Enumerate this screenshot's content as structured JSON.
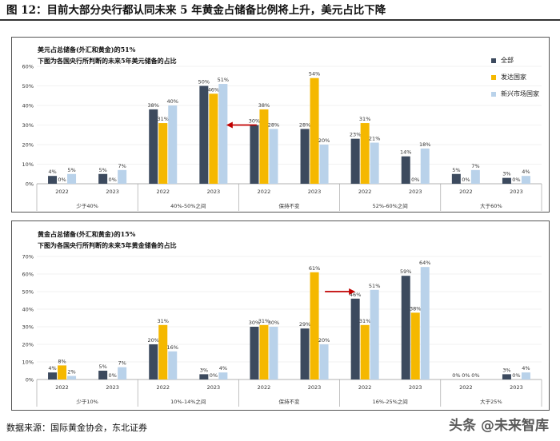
{
  "figure_title": "图 12：目前大部分央行都认同未来 5 年黄金占储备比例将上升，美元占比下降",
  "source": "数据来源：国际黄金协会，东北证券",
  "watermark": "头条 @未来智库",
  "colors": {
    "series": [
      "#3c4a5e",
      "#f5b800",
      "#b9d2ea"
    ],
    "arrow": "#c00000",
    "axis": "#999999",
    "grid": "#e6e6e6",
    "text": "#333333"
  },
  "chart_data": [
    {
      "type": "bar",
      "title": "美元占总储备(外汇和黄金)的51%",
      "subtitle": "下图为各国央行所判断的未来5年美元储备的占比",
      "ylim": [
        0,
        60
      ],
      "yticks": [
        0,
        10,
        20,
        30,
        40,
        50,
        60
      ],
      "yformat": "percent",
      "groups": [
        "少于40%",
        "40%-50%之间",
        "保持不变",
        "52%-60%之间",
        "大于60%"
      ],
      "categories": [
        "2022",
        "2023",
        "2022",
        "2023",
        "2022",
        "2023",
        "2022",
        "2023",
        "2022",
        "2023"
      ],
      "series": [
        {
          "name": "全部",
          "values": [
            4,
            5,
            38,
            50,
            30,
            28,
            23,
            14,
            5,
            3
          ]
        },
        {
          "name": "发达国家",
          "values": [
            0,
            0,
            31,
            46,
            38,
            54,
            31,
            0,
            0,
            0
          ]
        },
        {
          "name": "新兴市场国家",
          "values": [
            5,
            7,
            40,
            51,
            28,
            20,
            21,
            18,
            7,
            4
          ]
        }
      ],
      "legend": [
        "全部",
        "发达国家",
        "新兴市场国家"
      ],
      "annotation": "arrow pointing left toward 40%-50%之间 / 2023"
    },
    {
      "type": "bar",
      "title": "黄金占总储备(外汇和黄金)的15%",
      "subtitle": "下图为各国央行所判断的未来5年黄金储备的占比",
      "ylim": [
        0,
        70
      ],
      "yticks": [
        0,
        10,
        20,
        30,
        40,
        50,
        60,
        70
      ],
      "yformat": "percent",
      "groups": [
        "少于10%",
        "10%-14%之间",
        "保持不变",
        "16%-25%之间",
        "大于25%"
      ],
      "categories": [
        "2022",
        "2023",
        "2022",
        "2023",
        "2022",
        "2023",
        "2022",
        "2023",
        "2022",
        "2023"
      ],
      "series": [
        {
          "name": "全部",
          "values": [
            4,
            5,
            20,
            3,
            30,
            29,
            46,
            59,
            0,
            3
          ]
        },
        {
          "name": "发达国家",
          "values": [
            8,
            0,
            31,
            0,
            31,
            61,
            31,
            38,
            0,
            0
          ]
        },
        {
          "name": "新兴市场国家",
          "values": [
            2,
            7,
            16,
            4,
            30,
            20,
            51,
            64,
            0,
            4
          ]
        }
      ],
      "annotation": "arrow pointing right toward 16%-25%之间 / 2022"
    }
  ]
}
